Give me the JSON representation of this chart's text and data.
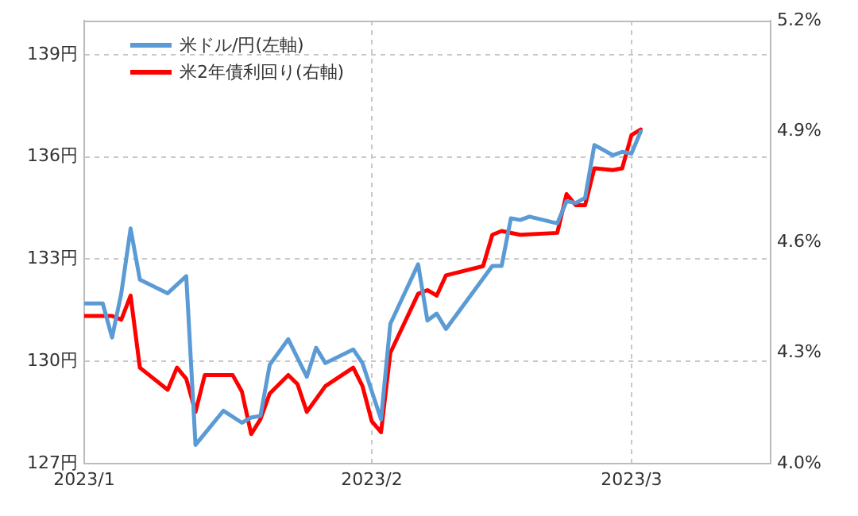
{
  "chart_data": {
    "type": "line",
    "legend": "top left",
    "grid": true,
    "marker": "none",
    "line_style": "solid",
    "xlim": [
      "2023-01-01",
      "2023-03-16"
    ],
    "xticks": [
      {
        "value": "2023-01-01",
        "label": "2023/1"
      },
      {
        "value": "2023-02-01",
        "label": "2023/2"
      },
      {
        "value": "2023-03-01",
        "label": "2023/3"
      }
    ],
    "ylim": [
      127,
      140
    ],
    "yticks": [
      {
        "value": 127,
        "label": "127円"
      },
      {
        "value": 130,
        "label": "130円"
      },
      {
        "value": 133,
        "label": "133円"
      },
      {
        "value": 136,
        "label": "136円"
      },
      {
        "value": 139,
        "label": "139円"
      }
    ],
    "y2lim": [
      4.0,
      5.2
    ],
    "y2ticks": [
      {
        "value": 4.0,
        "label": "4.0%"
      },
      {
        "value": 4.3,
        "label": "4.3%"
      },
      {
        "value": 4.6,
        "label": "4.6%"
      },
      {
        "value": 4.9,
        "label": "4.9%"
      },
      {
        "value": 5.2,
        "label": "5.2%"
      }
    ],
    "series": [
      {
        "name": "米ドル/円(左軸)",
        "color": "#5b9bd5",
        "x": [
          "2023-01-01",
          "2023-01-03",
          "2023-01-04",
          "2023-01-05",
          "2023-01-06",
          "2023-01-07",
          "2023-01-10",
          "2023-01-12",
          "2023-01-13",
          "2023-01-16",
          "2023-01-18",
          "2023-01-19",
          "2023-01-20",
          "2023-01-21",
          "2023-01-23",
          "2023-01-25",
          "2023-01-26",
          "2023-01-27",
          "2023-01-30",
          "2023-01-31",
          "2023-02-02",
          "2023-02-03",
          "2023-02-06",
          "2023-02-07",
          "2023-02-08",
          "2023-02-09",
          "2023-02-14",
          "2023-02-15",
          "2023-02-16",
          "2023-02-17",
          "2023-02-18",
          "2023-02-21",
          "2023-02-22",
          "2023-02-23",
          "2023-02-24",
          "2023-02-25",
          "2023-02-27",
          "2023-02-28",
          "2023-03-01",
          "2023-03-02"
        ],
        "values": [
          131.7,
          131.7,
          130.7,
          132.0,
          133.9,
          132.4,
          132.0,
          132.5,
          127.55,
          128.55,
          128.2,
          128.35,
          128.4,
          129.9,
          130.65,
          129.55,
          130.4,
          129.95,
          130.35,
          129.95,
          128.3,
          131.1,
          132.85,
          131.2,
          131.4,
          130.95,
          132.8,
          132.8,
          134.2,
          134.15,
          134.25,
          134.05,
          134.7,
          134.65,
          134.8,
          136.35,
          136.05,
          136.15,
          136.1,
          136.75
        ]
      },
      {
        "name": "米2年債利回り(右軸)",
        "color": "#ff0000",
        "axis": "y2",
        "x": [
          "2023-01-01",
          "2023-01-04",
          "2023-01-05",
          "2023-01-06",
          "2023-01-07",
          "2023-01-10",
          "2023-01-11",
          "2023-01-12",
          "2023-01-13",
          "2023-01-14",
          "2023-01-17",
          "2023-01-18",
          "2023-01-19",
          "2023-01-20",
          "2023-01-21",
          "2023-01-23",
          "2023-01-24",
          "2023-01-25",
          "2023-01-27",
          "2023-01-30",
          "2023-01-31",
          "2023-02-01",
          "2023-02-02",
          "2023-02-03",
          "2023-02-06",
          "2023-02-07",
          "2023-02-08",
          "2023-02-09",
          "2023-02-13",
          "2023-02-14",
          "2023-02-15",
          "2023-02-17",
          "2023-02-21",
          "2023-02-22",
          "2023-02-23",
          "2023-02-24",
          "2023-02-25",
          "2023-02-27",
          "2023-02-28",
          "2023-03-01",
          "2023-03-02"
        ],
        "values": [
          4.4,
          4.4,
          4.39,
          4.455,
          4.26,
          4.2,
          4.26,
          4.23,
          4.14,
          4.24,
          4.24,
          4.195,
          4.08,
          4.12,
          4.19,
          4.24,
          4.215,
          4.14,
          4.21,
          4.26,
          4.21,
          4.115,
          4.085,
          4.3,
          4.46,
          4.47,
          4.455,
          4.51,
          4.535,
          4.62,
          4.63,
          4.62,
          4.625,
          4.73,
          4.7,
          4.7,
          4.8,
          4.795,
          4.8,
          4.89,
          4.905
        ]
      }
    ]
  }
}
